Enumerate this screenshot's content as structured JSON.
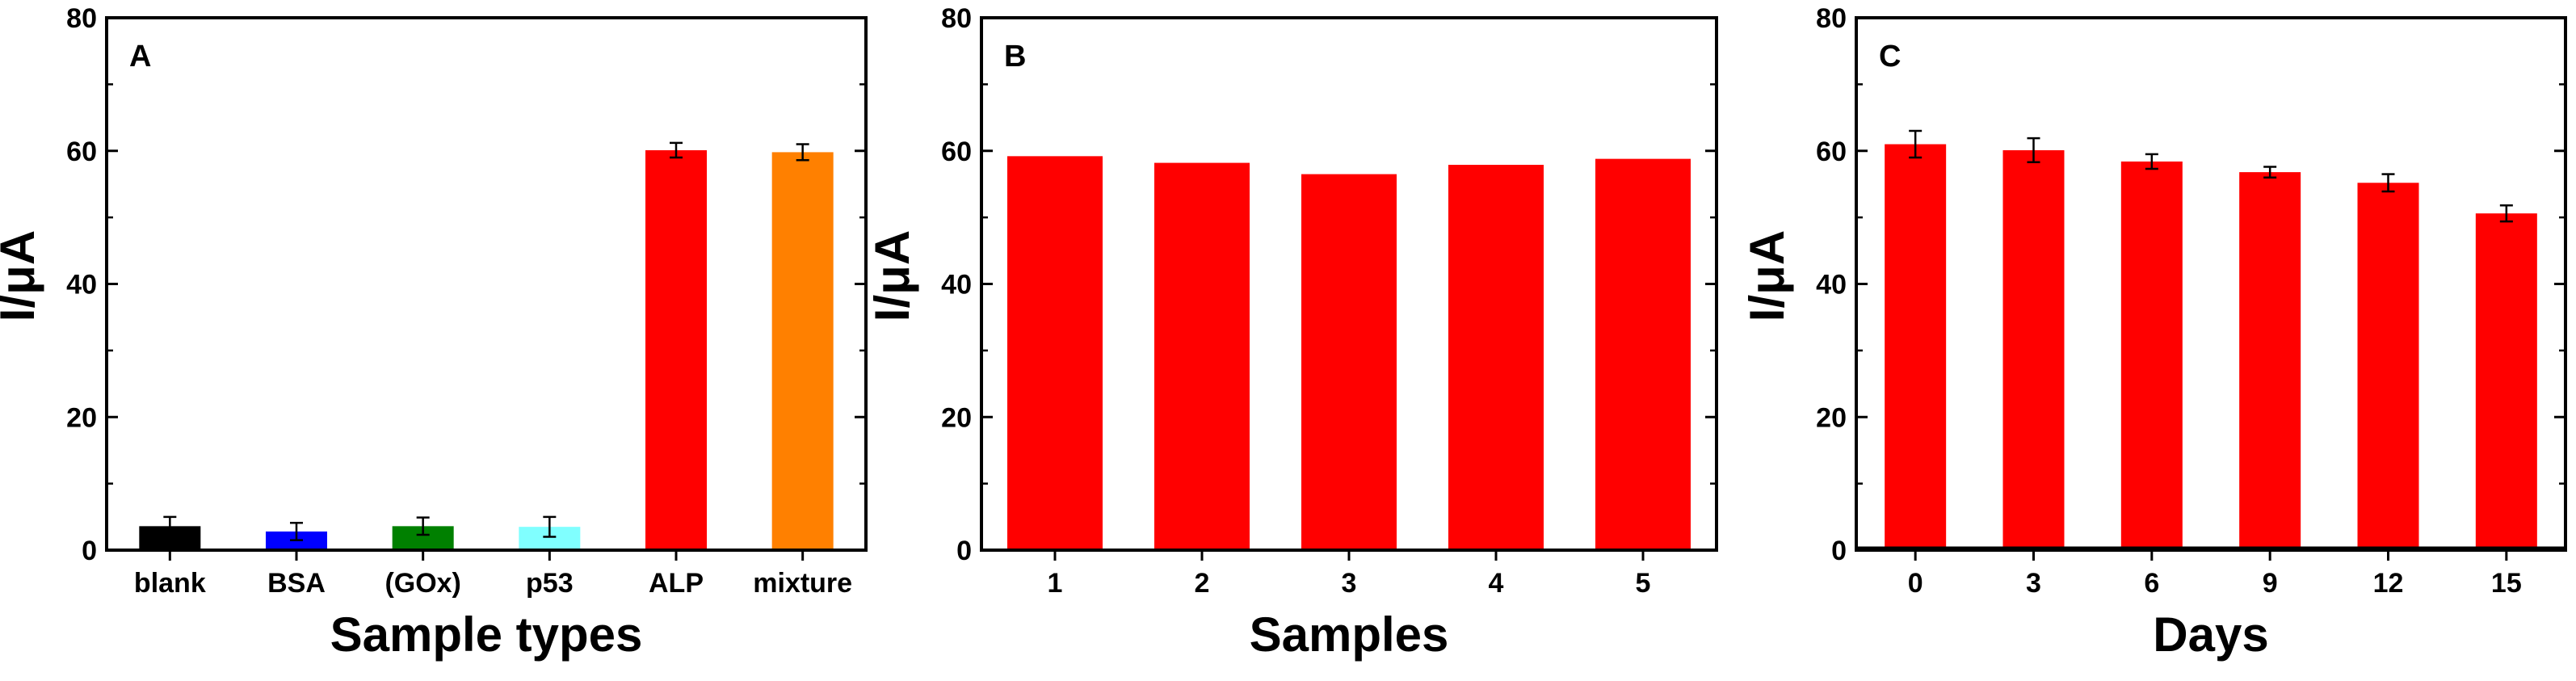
{
  "chart_data": [
    {
      "type": "bar",
      "panel_label": "A",
      "title": "",
      "xlabel": "Sample types",
      "ylabel": "I/μA",
      "ylim": [
        0,
        80
      ],
      "yticks": [
        0,
        20,
        40,
        60,
        80
      ],
      "categories": [
        "blank",
        "BSA",
        "(GOx)",
        "p53",
        "ALP",
        "mixture"
      ],
      "values": [
        3.6,
        2.8,
        3.6,
        3.5,
        60.1,
        59.8
      ],
      "errors": [
        1.4,
        1.3,
        1.3,
        1.5,
        1.1,
        1.2
      ],
      "colors": [
        "#000000",
        "#0000ff",
        "#008000",
        "#80ffff",
        "#ff0000",
        "#ff8000"
      ],
      "grid": false,
      "baseline": false
    },
    {
      "type": "bar",
      "panel_label": "B",
      "title": "",
      "xlabel": "Samples",
      "ylabel": "I/μA",
      "ylim": [
        0,
        80
      ],
      "yticks": [
        0,
        20,
        40,
        60,
        80
      ],
      "categories": [
        "1",
        "2",
        "3",
        "4",
        "5"
      ],
      "values": [
        59.2,
        58.2,
        56.5,
        57.9,
        58.8
      ],
      "errors": [],
      "colors": [
        "#ff0000",
        "#ff0000",
        "#ff0000",
        "#ff0000",
        "#ff0000"
      ],
      "grid": false,
      "baseline": false
    },
    {
      "type": "bar",
      "panel_label": "C",
      "title": "",
      "xlabel": "Days",
      "ylabel": "I/μA",
      "ylim": [
        0,
        80
      ],
      "yticks": [
        0,
        20,
        40,
        60,
        80
      ],
      "categories": [
        "0",
        "3",
        "6",
        "9",
        "12",
        "15"
      ],
      "values": [
        61.0,
        60.1,
        58.4,
        56.8,
        55.2,
        50.6
      ],
      "errors": [
        2.0,
        1.8,
        1.1,
        0.8,
        1.3,
        1.2
      ],
      "colors": [
        "#ff0000",
        "#ff0000",
        "#ff0000",
        "#ff0000",
        "#ff0000",
        "#ff0000"
      ],
      "grid": false,
      "baseline": true
    }
  ]
}
